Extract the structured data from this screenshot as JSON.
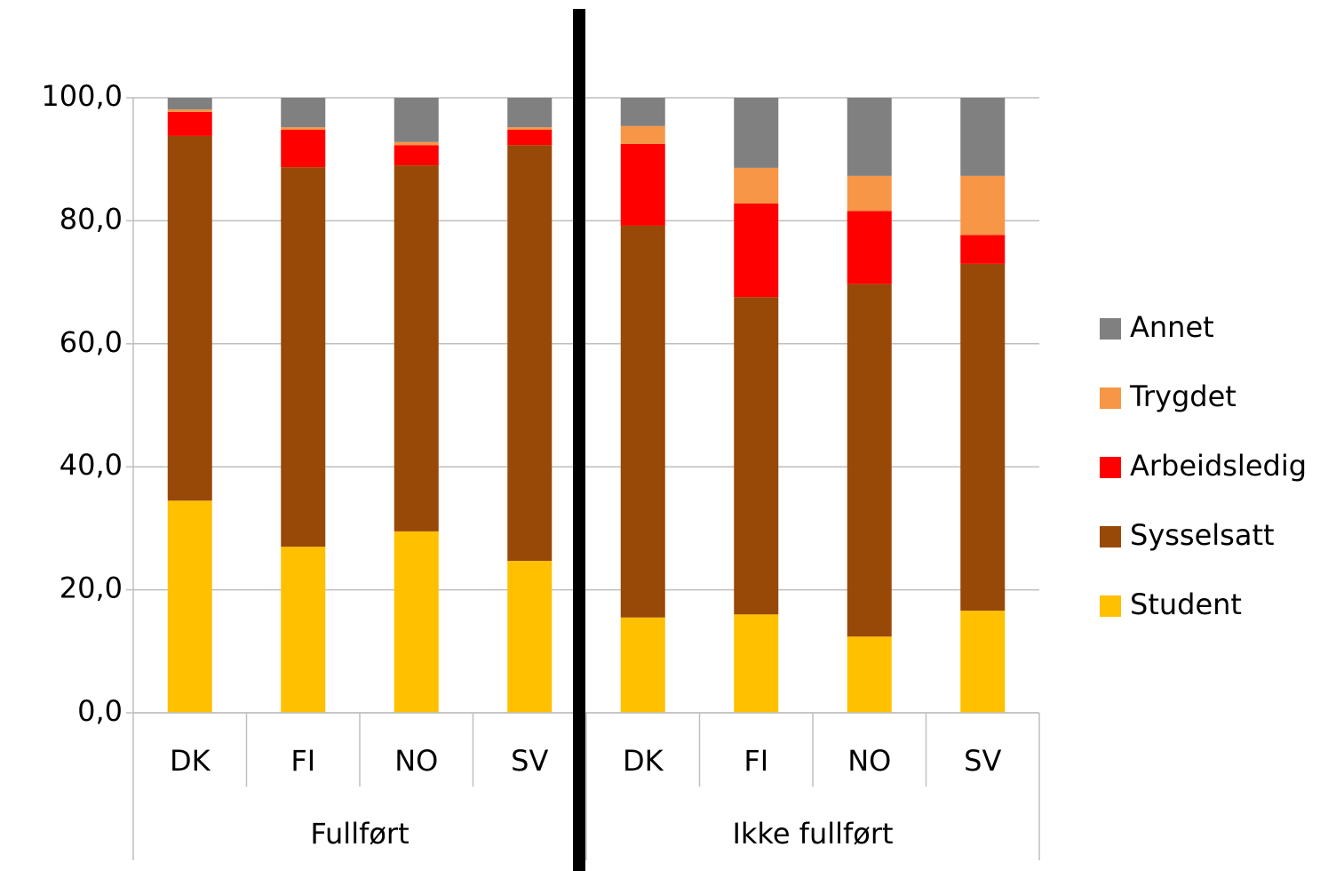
{
  "chart_data": {
    "type": "stacked_bar",
    "categories": [
      "DK",
      "FI",
      "NO",
      "SV",
      "DK",
      "FI",
      "NO",
      "SV"
    ],
    "groups": [
      "Fullført",
      "Ikke fullført"
    ],
    "series": [
      {
        "name": "Student",
        "color": "#ffc000",
        "values": [
          34.5,
          27.0,
          29.5,
          24.7,
          15.5,
          16.0,
          12.4,
          16.6
        ]
      },
      {
        "name": "Sysselsatt",
        "color": "#984807",
        "values": [
          59.3,
          61.7,
          59.5,
          67.6,
          63.7,
          51.6,
          57.3,
          56.4
        ]
      },
      {
        "name": "Arbeidsledig",
        "color": "#ff0000",
        "values": [
          3.9,
          6.1,
          3.3,
          2.5,
          13.3,
          15.2,
          11.9,
          4.7
        ]
      },
      {
        "name": "Trygdet",
        "color": "#f79646",
        "values": [
          0.4,
          0.4,
          0.5,
          0.4,
          2.9,
          5.8,
          5.7,
          9.6
        ]
      },
      {
        "name": "Annet",
        "color": "#808080",
        "values": [
          1.9,
          4.8,
          7.2,
          4.8,
          4.6,
          11.4,
          12.7,
          12.7
        ]
      }
    ],
    "ylim": [
      0,
      100
    ],
    "yticks": [
      {
        "value": 0,
        "label": "0,0"
      },
      {
        "value": 20,
        "label": "20,0"
      },
      {
        "value": 40,
        "label": "40,0"
      },
      {
        "value": 60,
        "label": "60,0"
      },
      {
        "value": 80,
        "label": "80,0"
      },
      {
        "value": 100,
        "label": "100,0"
      }
    ],
    "grid": true,
    "legend": "right"
  }
}
